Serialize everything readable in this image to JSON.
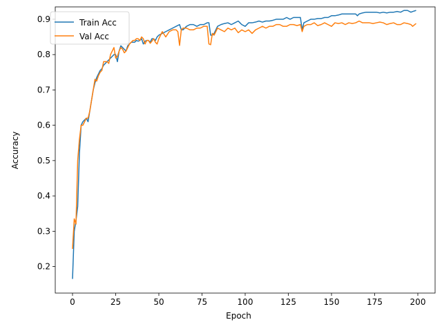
{
  "chart_data": {
    "type": "line",
    "xlabel": "Epoch",
    "ylabel": "Accuracy",
    "xlim": [
      -10,
      210
    ],
    "ylim": [
      0.125,
      0.935
    ],
    "xticks": [
      0,
      25,
      50,
      75,
      100,
      125,
      150,
      175,
      200
    ],
    "xtick_labels": [
      "0",
      "25",
      "50",
      "75",
      "100",
      "125",
      "150",
      "175",
      "200"
    ],
    "yticks": [
      0.2,
      0.3,
      0.4,
      0.5,
      0.6,
      0.7,
      0.8,
      0.9
    ],
    "ytick_labels": [
      "0.2",
      "0.3",
      "0.4",
      "0.5",
      "0.6",
      "0.7",
      "0.8",
      "0.9"
    ],
    "grid": false,
    "legend_position": "top-left",
    "series": [
      {
        "name": "Train Acc",
        "color": "#1f77b4",
        "x": [
          0,
          1,
          2,
          3,
          4,
          5,
          6,
          7,
          8,
          9,
          10,
          11,
          12,
          13,
          14,
          15,
          16,
          17,
          18,
          19,
          20,
          21,
          22,
          23,
          24,
          25,
          26,
          27,
          28,
          29,
          30,
          31,
          32,
          33,
          34,
          35,
          36,
          37,
          38,
          39,
          40,
          41,
          42,
          43,
          44,
          45,
          46,
          47,
          48,
          49,
          50,
          52,
          54,
          56,
          58,
          60,
          62,
          63,
          64,
          66,
          68,
          70,
          72,
          74,
          76,
          78,
          79,
          80,
          81,
          82,
          83,
          84,
          86,
          88,
          90,
          92,
          94,
          96,
          97,
          98,
          100,
          102,
          104,
          106,
          108,
          110,
          112,
          114,
          116,
          118,
          120,
          122,
          124,
          126,
          128,
          130,
          132,
          133,
          134,
          136,
          138,
          140,
          142,
          144,
          146,
          148,
          150,
          152,
          154,
          156,
          158,
          160,
          162,
          164,
          165,
          166,
          168,
          170,
          172,
          174,
          176,
          178,
          180,
          182,
          184,
          186,
          188,
          190,
          192,
          194,
          196,
          197,
          199
        ],
        "y": [
          0.165,
          0.3,
          0.33,
          0.37,
          0.52,
          0.6,
          0.61,
          0.615,
          0.62,
          0.61,
          0.64,
          0.67,
          0.7,
          0.72,
          0.735,
          0.745,
          0.755,
          0.76,
          0.77,
          0.775,
          0.78,
          0.785,
          0.79,
          0.795,
          0.8,
          0.8,
          0.78,
          0.81,
          0.825,
          0.82,
          0.815,
          0.81,
          0.825,
          0.83,
          0.835,
          0.835,
          0.835,
          0.84,
          0.838,
          0.84,
          0.845,
          0.83,
          0.838,
          0.84,
          0.84,
          0.835,
          0.845,
          0.845,
          0.84,
          0.85,
          0.855,
          0.86,
          0.865,
          0.87,
          0.875,
          0.88,
          0.885,
          0.87,
          0.87,
          0.88,
          0.885,
          0.885,
          0.88,
          0.885,
          0.885,
          0.89,
          0.89,
          0.855,
          0.855,
          0.86,
          0.87,
          0.88,
          0.885,
          0.888,
          0.89,
          0.885,
          0.89,
          0.895,
          0.89,
          0.885,
          0.88,
          0.89,
          0.89,
          0.892,
          0.895,
          0.892,
          0.895,
          0.895,
          0.897,
          0.9,
          0.9,
          0.9,
          0.905,
          0.9,
          0.905,
          0.905,
          0.905,
          0.87,
          0.89,
          0.895,
          0.9,
          0.9,
          0.902,
          0.902,
          0.905,
          0.905,
          0.91,
          0.91,
          0.912,
          0.915,
          0.915,
          0.915,
          0.915,
          0.915,
          0.91,
          0.915,
          0.918,
          0.92,
          0.92,
          0.92,
          0.92,
          0.918,
          0.92,
          0.918,
          0.92,
          0.92,
          0.922,
          0.92,
          0.925,
          0.925,
          0.92,
          0.922,
          0.925
        ]
      },
      {
        "name": "Val Acc",
        "color": "#ff7f0e",
        "x": [
          0,
          1,
          2,
          3,
          4,
          5,
          6,
          7,
          8,
          9,
          10,
          11,
          12,
          13,
          14,
          15,
          16,
          17,
          18,
          19,
          20,
          21,
          22,
          23,
          24,
          25,
          26,
          27,
          28,
          29,
          30,
          31,
          32,
          33,
          34,
          35,
          36,
          37,
          38,
          39,
          40,
          41,
          42,
          43,
          44,
          45,
          46,
          47,
          48,
          49,
          50,
          52,
          54,
          56,
          58,
          60,
          61,
          62,
          63,
          64,
          66,
          68,
          70,
          72,
          74,
          76,
          78,
          79,
          80,
          81,
          82,
          84,
          86,
          88,
          90,
          92,
          94,
          96,
          98,
          100,
          102,
          104,
          106,
          108,
          110,
          112,
          114,
          116,
          118,
          120,
          122,
          124,
          126,
          128,
          130,
          132,
          133,
          134,
          136,
          138,
          140,
          142,
          144,
          146,
          148,
          150,
          152,
          154,
          156,
          158,
          160,
          162,
          164,
          166,
          168,
          170,
          172,
          174,
          176,
          178,
          180,
          182,
          184,
          186,
          188,
          190,
          192,
          194,
          196,
          197,
          199
        ],
        "y": [
          0.25,
          0.335,
          0.32,
          0.5,
          0.56,
          0.6,
          0.6,
          0.61,
          0.62,
          0.62,
          0.64,
          0.67,
          0.7,
          0.73,
          0.725,
          0.74,
          0.75,
          0.755,
          0.78,
          0.78,
          0.78,
          0.775,
          0.8,
          0.81,
          0.82,
          0.79,
          0.795,
          0.81,
          0.82,
          0.815,
          0.805,
          0.81,
          0.82,
          0.83,
          0.835,
          0.84,
          0.84,
          0.845,
          0.845,
          0.84,
          0.85,
          0.845,
          0.83,
          0.84,
          0.84,
          0.832,
          0.838,
          0.845,
          0.835,
          0.83,
          0.845,
          0.865,
          0.85,
          0.865,
          0.87,
          0.87,
          0.865,
          0.826,
          0.87,
          0.875,
          0.875,
          0.87,
          0.87,
          0.875,
          0.875,
          0.88,
          0.88,
          0.83,
          0.828,
          0.86,
          0.855,
          0.875,
          0.87,
          0.865,
          0.875,
          0.87,
          0.875,
          0.862,
          0.87,
          0.865,
          0.87,
          0.86,
          0.87,
          0.875,
          0.88,
          0.875,
          0.88,
          0.88,
          0.885,
          0.885,
          0.88,
          0.88,
          0.885,
          0.885,
          0.882,
          0.885,
          0.865,
          0.88,
          0.885,
          0.885,
          0.89,
          0.882,
          0.885,
          0.89,
          0.885,
          0.88,
          0.89,
          0.888,
          0.89,
          0.885,
          0.89,
          0.888,
          0.89,
          0.895,
          0.89,
          0.89,
          0.89,
          0.888,
          0.89,
          0.892,
          0.89,
          0.885,
          0.888,
          0.89,
          0.885,
          0.885,
          0.89,
          0.888,
          0.885,
          0.88,
          0.888
        ]
      }
    ]
  }
}
